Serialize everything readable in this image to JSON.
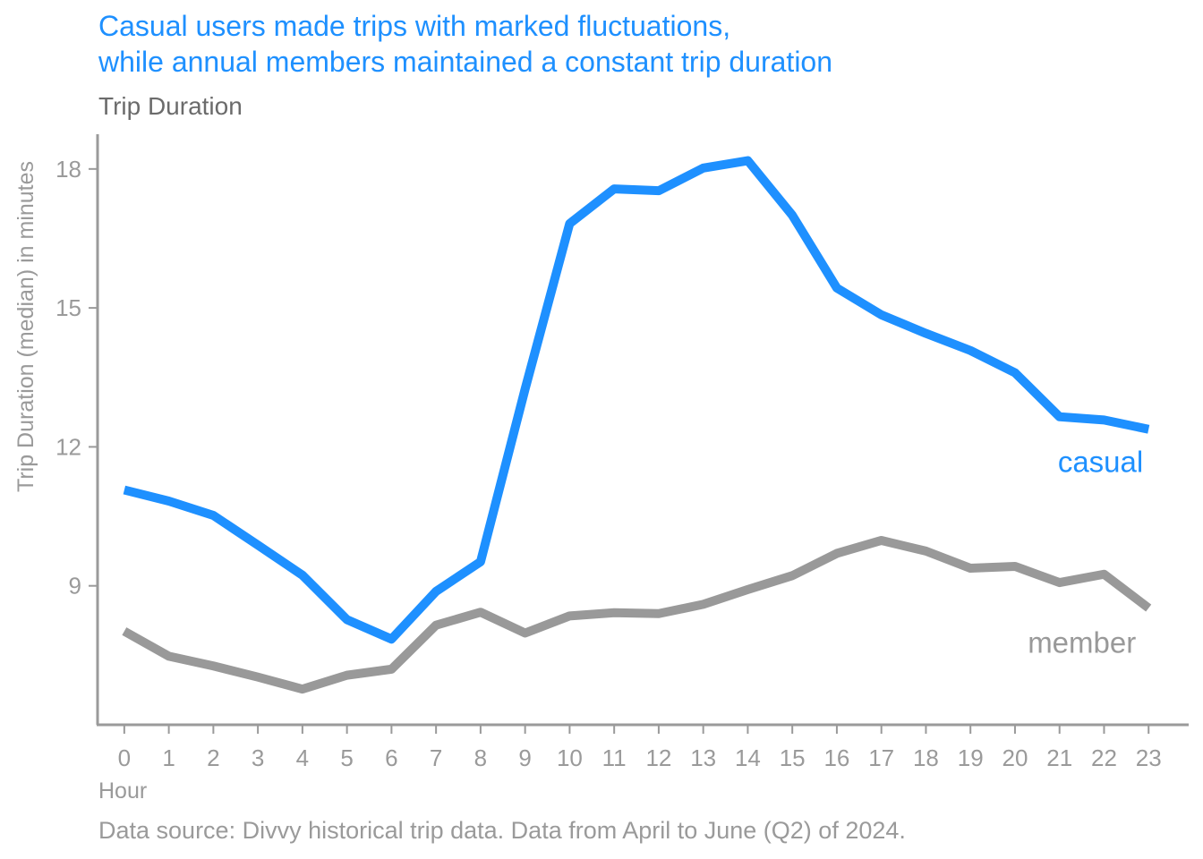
{
  "chart_data": {
    "type": "line",
    "title_lines": [
      "Casual users made trips with marked fluctuations,",
      "while annual members maintained a constant trip duration"
    ],
    "subtitle": "Trip Duration",
    "xlabel": "Hour",
    "ylabel": "Trip Duration (median) in minutes",
    "caption": "Data source: Divvy historical trip data. Data from April to June (Q2) of 2024.",
    "x": [
      0,
      1,
      2,
      3,
      4,
      5,
      6,
      7,
      8,
      9,
      10,
      11,
      12,
      13,
      14,
      15,
      16,
      17,
      18,
      19,
      20,
      21,
      22,
      23
    ],
    "x_ticks": [
      "0",
      "1",
      "2",
      "3",
      "4",
      "5",
      "6",
      "7",
      "8",
      "9",
      "10",
      "11",
      "12",
      "13",
      "14",
      "15",
      "16",
      "17",
      "18",
      "19",
      "20",
      "21",
      "22",
      "23"
    ],
    "y_ticks": [
      9,
      12,
      15,
      18
    ],
    "y_tick_labels": [
      "9",
      "12",
      "15",
      "18"
    ],
    "ylim": [
      6.0,
      18.75
    ],
    "xlim": [
      -0.6,
      23.9
    ],
    "grid": false,
    "series": [
      {
        "name": "casual",
        "color": "#1e90ff",
        "values": [
          11.07,
          10.83,
          10.52,
          9.88,
          9.23,
          8.27,
          7.85,
          8.88,
          9.52,
          13.25,
          16.82,
          17.57,
          17.53,
          18.02,
          18.18,
          17.0,
          15.43,
          14.85,
          14.45,
          14.08,
          13.6,
          12.65,
          12.58,
          12.38
        ]
      },
      {
        "name": "member",
        "color": "#999999",
        "values": [
          8.02,
          7.48,
          7.27,
          7.03,
          6.77,
          7.07,
          7.2,
          8.15,
          8.43,
          7.98,
          8.35,
          8.42,
          8.4,
          8.6,
          8.92,
          9.22,
          9.7,
          9.98,
          9.75,
          9.38,
          9.42,
          9.07,
          9.25,
          8.52
        ]
      }
    ]
  }
}
